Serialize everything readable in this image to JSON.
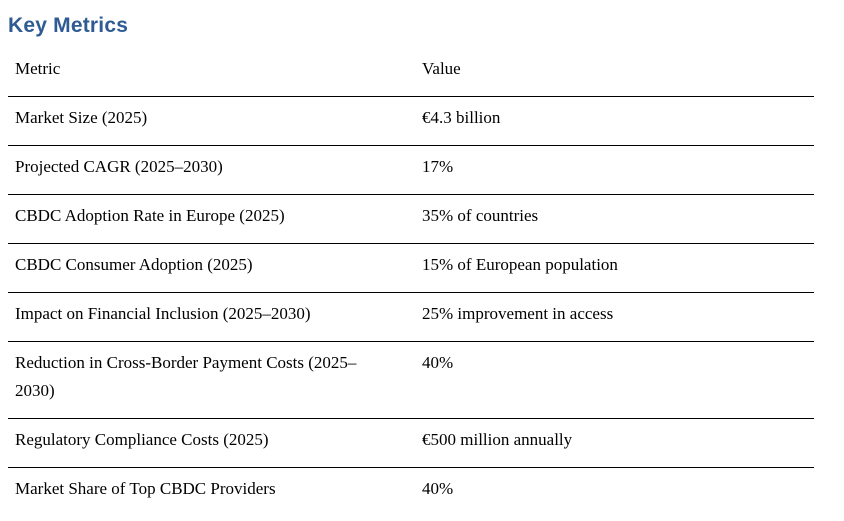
{
  "page": {
    "title": "Key Metrics",
    "title_color": "#2F5B93",
    "text_color": "#000000",
    "background_color": "#ffffff"
  },
  "table": {
    "columns": [
      "Metric",
      "Value"
    ],
    "rows": [
      {
        "metric": "Market Size (2025)",
        "value": "€4.3 billion"
      },
      {
        "metric": "Projected CAGR (2025–2030)",
        "value": "17%"
      },
      {
        "metric": "CBDC Adoption Rate in Europe (2025)",
        "value": "35% of countries"
      },
      {
        "metric": "CBDC Consumer Adoption (2025)",
        "value": "15% of European population"
      },
      {
        "metric": "Impact on Financial Inclusion (2025–2030)",
        "value": "25% improvement in access"
      },
      {
        "metric": "Reduction in Cross-Border Payment Costs (2025–2030)",
        "value": "40%"
      },
      {
        "metric": "Regulatory Compliance Costs (2025)",
        "value": "€500 million annually"
      },
      {
        "metric": "Market Share of Top CBDC Providers",
        "value": "40%"
      }
    ]
  }
}
